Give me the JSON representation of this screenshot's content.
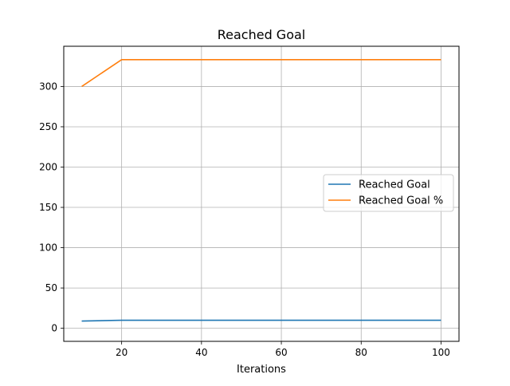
{
  "chart_data": {
    "type": "line",
    "title": "Reached Goal",
    "xlabel": "Iterations",
    "ylabel": "",
    "xlim": [
      5.5,
      104.5
    ],
    "ylim": [
      -16.2,
      349.9
    ],
    "xticks": [
      20,
      40,
      60,
      80,
      100
    ],
    "yticks": [
      0,
      50,
      100,
      150,
      200,
      250,
      300
    ],
    "grid": true,
    "legend_position": "center-right",
    "x": [
      10,
      20,
      30,
      40,
      50,
      60,
      70,
      80,
      90,
      100
    ],
    "series": [
      {
        "name": "Reached Goal",
        "color": "#1f77b4",
        "values": [
          9,
          10,
          10,
          10,
          10,
          10,
          10,
          10,
          10,
          10
        ]
      },
      {
        "name": "Reached Goal %",
        "color": "#ff7f0e",
        "values": [
          300,
          333.3,
          333.3,
          333.3,
          333.3,
          333.3,
          333.3,
          333.3,
          333.3,
          333.3
        ]
      }
    ]
  }
}
